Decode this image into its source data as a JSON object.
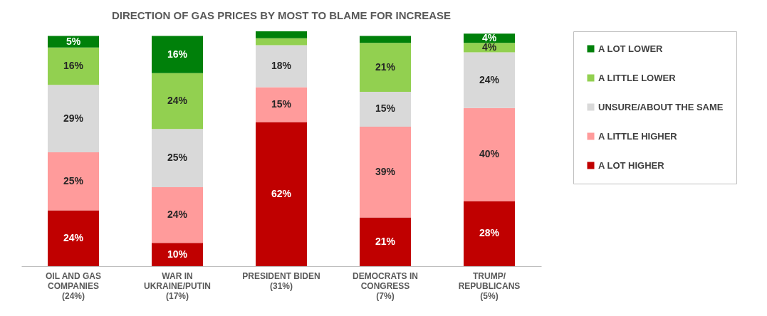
{
  "chart_data": {
    "type": "bar",
    "title": "DIRECTION OF GAS PRICES BY MOST TO BLAME FOR INCREASE",
    "stacked": true,
    "legend": "right",
    "categories": [
      "OIL AND GAS\nCOMPANIES\n(24%)",
      "WAR IN\nUKRAINE/PUTIN\n(17%)",
      "PRESIDENT BIDEN\n(31%)",
      "DEMOCRATS IN\nCONGRESS\n(7%)",
      "TRUMP/\nREPUBLICANS\n(5%)"
    ],
    "series": [
      {
        "name": "A LOT HIGHER",
        "color": "#c00000",
        "values": [
          24,
          10,
          62,
          21,
          28
        ],
        "value_labels": [
          "24%",
          "10%",
          "62%",
          "21%",
          "28%"
        ]
      },
      {
        "name": "A LITTLE HIGHER",
        "color": "#ff9b9b",
        "values": [
          25,
          24,
          15,
          39,
          40
        ],
        "value_labels": [
          "25%",
          "24%",
          "15%",
          "39%",
          "40%"
        ]
      },
      {
        "name": "UNSURE/ABOUT THE SAME",
        "color": "#d9d9d9",
        "values": [
          29,
          25,
          18,
          15,
          24
        ],
        "value_labels": [
          "29%",
          "25%",
          "18%",
          "15%",
          "24%"
        ]
      },
      {
        "name": "A LITTLE LOWER",
        "color": "#92d050",
        "values": [
          16,
          24,
          3,
          21,
          4
        ],
        "value_labels": [
          "16%",
          "24%",
          null,
          "21%",
          "4%"
        ]
      },
      {
        "name": "A LOT LOWER",
        "color": "#00800a",
        "values": [
          5,
          16,
          3,
          3,
          4
        ],
        "value_labels": [
          "5%",
          "16%",
          null,
          null,
          "4%"
        ]
      }
    ]
  }
}
